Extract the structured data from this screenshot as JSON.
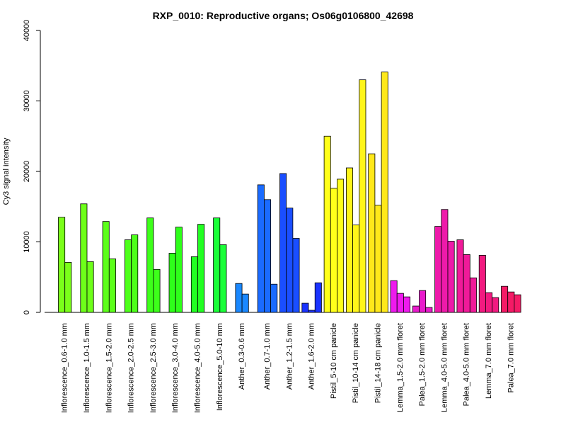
{
  "chart_data": {
    "type": "bar",
    "title": "RXP_0010: Reproductive organs; Os06g0106800_42698",
    "xlabel": "",
    "ylabel": "Cy3 signal intensity",
    "ylim": [
      0,
      40000
    ],
    "yticks": [
      0,
      10000,
      20000,
      30000,
      40000
    ],
    "grid": false,
    "groups": [
      {
        "label": "Inflorescence_0.6-1.0 mm",
        "values": [
          13500,
          7100
        ],
        "colors": [
          "#7bff1a",
          "#7bff1a"
        ]
      },
      {
        "label": "Inflorescence_1.0-1.5 mm",
        "values": [
          15400,
          7200
        ],
        "colors": [
          "#6eff1a",
          "#6eff1a"
        ]
      },
      {
        "label": "Inflorescence_1.5-2.0 mm",
        "values": [
          12900,
          7600
        ],
        "colors": [
          "#5cff1a",
          "#5cff1a"
        ]
      },
      {
        "label": "Inflorescence_2.0-2.5 mm",
        "values": [
          10300,
          11000
        ],
        "colors": [
          "#4dff1a",
          "#4dff1a"
        ]
      },
      {
        "label": "Inflorescence_2.5-3.0 mm",
        "values": [
          13400,
          6100
        ],
        "colors": [
          "#3dff1a",
          "#3dff1a"
        ]
      },
      {
        "label": "Inflorescence_3.0-4.0 mm",
        "values": [
          8400,
          12100
        ],
        "colors": [
          "#2eff1a",
          "#2eff1a"
        ]
      },
      {
        "label": "Inflorescence_4.0-5.0 mm",
        "values": [
          7900,
          12500
        ],
        "colors": [
          "#22ff22",
          "#22ff22"
        ]
      },
      {
        "label": "Inflorescence_5.0-10 mm",
        "values": [
          13400,
          9600
        ],
        "colors": [
          "#1aff38",
          "#1aff38"
        ]
      },
      {
        "label": "Anther_0.3-0.6 mm",
        "values": [
          4100,
          2600
        ],
        "colors": [
          "#1a88ff",
          "#1a88ff"
        ]
      },
      {
        "label": "Anther_0.7-1.0 mm",
        "values": [
          18100,
          16000,
          4000
        ],
        "colors": [
          "#1a6bff",
          "#1a6bff",
          "#1a6bff"
        ]
      },
      {
        "label": "Anther_1.2-1.5 mm",
        "values": [
          19700,
          14800,
          10500
        ],
        "colors": [
          "#1a4eff",
          "#1a4eff",
          "#1a4eff"
        ]
      },
      {
        "label": "Anther_1.6-2.0 mm",
        "values": [
          1300,
          300,
          4200
        ],
        "colors": [
          "#1a33ff",
          "#1a33ff",
          "#1a33ff"
        ]
      },
      {
        "label": "Pistil_5-10 cm panicle",
        "values": [
          25000,
          17600,
          18900
        ],
        "colors": [
          "#ffff1a",
          "#ffff1a",
          "#ffff1a"
        ]
      },
      {
        "label": "Pistil_10-14 cm panicle",
        "values": [
          20500,
          12400,
          33000
        ],
        "colors": [
          "#fff51a",
          "#fff51a",
          "#fff51a"
        ]
      },
      {
        "label": "Pistil_14-18 cm panicle",
        "values": [
          22500,
          15200,
          34100
        ],
        "colors": [
          "#ffe81a",
          "#ffe81a",
          "#ffe81a"
        ]
      },
      {
        "label": "Lemma_1.5-2.0 mm floret",
        "values": [
          4500,
          2700,
          2200
        ],
        "colors": [
          "#ee1aee",
          "#ee1aee",
          "#ee1aee"
        ]
      },
      {
        "label": "Palea_1.5-2.0 mm floret",
        "values": [
          900,
          3100,
          700
        ],
        "colors": [
          "#e81acc",
          "#e81acc",
          "#e81acc"
        ]
      },
      {
        "label": "Lemma_4.0-5.0 mm floret",
        "values": [
          12200,
          14600,
          10100
        ],
        "colors": [
          "#ee1aaa",
          "#ee1aaa",
          "#ee1aaa"
        ]
      },
      {
        "label": "Palea_4.0-5.0 mm floret",
        "values": [
          10300,
          8200,
          4900
        ],
        "colors": [
          "#f01a99",
          "#f01a99",
          "#f01a99"
        ]
      },
      {
        "label": "Lemma_7.0 mm floret",
        "values": [
          8100,
          2800,
          2100
        ],
        "colors": [
          "#f21a80",
          "#f21a80",
          "#f21a80"
        ]
      },
      {
        "label": "Palea_7.0 mm floret",
        "values": [
          3700,
          2900,
          2500
        ],
        "colors": [
          "#f51a66",
          "#f51a66",
          "#f51a66"
        ]
      }
    ]
  }
}
